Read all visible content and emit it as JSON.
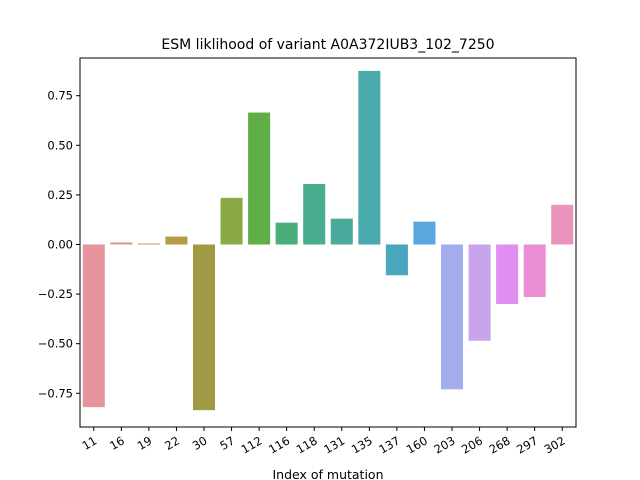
{
  "chart_data": {
    "type": "bar",
    "title": "ESM liklihood of variant A0A372IUB3_102_7250",
    "xlabel": "Index of mutation",
    "ylabel": "",
    "ylim": [
      -0.92,
      0.94
    ],
    "yticks": [
      -0.75,
      -0.5,
      -0.25,
      0.0,
      0.25,
      0.5,
      0.75
    ],
    "ytick_labels": [
      "−0.75",
      "−0.50",
      "−0.25",
      "0.00",
      "0.25",
      "0.50",
      "0.75"
    ],
    "categories": [
      "11",
      "16",
      "19",
      "22",
      "30",
      "57",
      "112",
      "116",
      "118",
      "131",
      "135",
      "137",
      "160",
      "203",
      "206",
      "268",
      "297",
      "302"
    ],
    "values": [
      -0.82,
      0.01,
      0.005,
      0.04,
      -0.835,
      0.235,
      0.665,
      0.11,
      0.305,
      0.13,
      0.875,
      -0.155,
      0.115,
      -0.73,
      -0.485,
      -0.3,
      -0.265,
      0.2
    ],
    "colors": [
      "#e8949d",
      "#e09174",
      "#c89c5c",
      "#b49c47",
      "#a09a45",
      "#8aaa45",
      "#5fae48",
      "#4aae7a",
      "#48ac8e",
      "#49aa9c",
      "#4aa9ab",
      "#4aa6bd",
      "#5aa6dd",
      "#a3acec",
      "#c8a4ec",
      "#e08ff0",
      "#ea8fd4",
      "#ea94bd"
    ],
    "grid": false,
    "legend": "none"
  }
}
